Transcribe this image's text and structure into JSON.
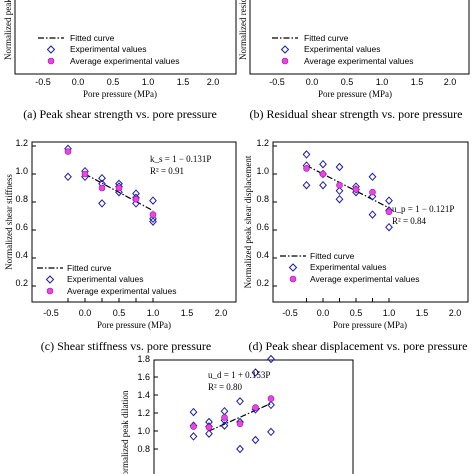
{
  "chart_data": [
    {
      "type": "scatter",
      "xlabel": "Pore pressure (MPa)",
      "ylabel": "Normalized peak shear strength",
      "xticks": [
        "-0.5",
        "0.0",
        "0.5",
        "1.0",
        "1.5",
        "2.0"
      ],
      "xlim": [
        -0.75,
        2.2
      ],
      "caption": "(a) Peak shear strength vs. pore pressure",
      "legend": [
        "Fitted curve",
        "Experimental values",
        "Average experimental values"
      ],
      "legend_position": "bottom-right"
    },
    {
      "type": "scatter",
      "xlabel": "Pore pressure (MPa)",
      "ylabel": "Normalized residual shear strength",
      "xticks": [
        "-0.5",
        "0.0",
        "0.5",
        "1.0",
        "1.5",
        "2.0"
      ],
      "xlim": [
        -0.75,
        2.2
      ],
      "caption": "(b) Residual shear strength vs. pore pressure",
      "legend": [
        "Fitted curve",
        "Experimental values",
        "Average experimental values"
      ],
      "legend_position": "bottom-right"
    },
    {
      "type": "scatter",
      "xlabel": "Pore pressure (MPa)",
      "ylabel": "Normalized shear stiffness",
      "xticks": [
        "-0.5",
        "0.0",
        "0.5",
        "1.0",
        "1.5",
        "2.0"
      ],
      "yticks": [
        "0.2",
        "0.4",
        "0.6",
        "0.8",
        "1.0",
        "1.2"
      ],
      "xlim": [
        -0.75,
        2.2
      ],
      "ylim": [
        0.1,
        1.25
      ],
      "caption": "(c) Shear stiffness vs. pore pressure",
      "equation": "k_s = 1 − 0.131P",
      "r2": "R² = 0.91",
      "fit": {
        "intercept": 1.0,
        "slope": -0.131,
        "x_range": [
          0,
          2
        ]
      },
      "legend": [
        "Fitted curve",
        "Experimental values",
        "Average experimental values"
      ],
      "legend_position": "bottom-left",
      "experimental": [
        [
          -0.5,
          1.18
        ],
        [
          -0.5,
          0.98
        ],
        [
          0,
          1.02
        ],
        [
          0,
          0.98
        ],
        [
          0.5,
          0.97
        ],
        [
          0.5,
          0.93
        ],
        [
          0.5,
          0.79
        ],
        [
          1,
          0.93
        ],
        [
          1,
          0.91
        ],
        [
          1,
          0.87
        ],
        [
          1.5,
          0.86
        ],
        [
          1.5,
          0.83
        ],
        [
          1.5,
          0.79
        ],
        [
          2,
          0.81
        ],
        [
          2,
          0.68
        ],
        [
          2,
          0.66
        ]
      ],
      "average": [
        [
          -0.5,
          1.16
        ],
        [
          0,
          1.0
        ],
        [
          0.5,
          0.9
        ],
        [
          1,
          0.9
        ],
        [
          1.5,
          0.82
        ],
        [
          2,
          0.71
        ]
      ]
    },
    {
      "type": "scatter",
      "xlabel": "Pore pressure (MPa)",
      "ylabel": "Normalized peak shear displacement",
      "xticks": [
        "-0.5",
        "0.0",
        "0.5",
        "1.0",
        "1.5",
        "2.0"
      ],
      "yticks": [
        "0.2",
        "0.4",
        "0.6",
        "0.8",
        "1.0",
        "1.2"
      ],
      "xlim": [
        -0.75,
        2.2
      ],
      "ylim": [
        0.1,
        1.25
      ],
      "caption": "(d) Peak shear displacement vs. pore pressure",
      "equation": "u_p = 1 − 0.121P",
      "r2": "R² = 0.84",
      "fit": {
        "intercept": 1.0,
        "slope": -0.121,
        "x_range": [
          -0.5,
          2
        ]
      },
      "legend": [
        "Fitted curve",
        "Experimental values",
        "Average experimental values"
      ],
      "legend_position": "bottom-left",
      "experimental": [
        [
          -0.5,
          1.14
        ],
        [
          -0.5,
          1.06
        ],
        [
          -0.5,
          0.92
        ],
        [
          0,
          1.07
        ],
        [
          0,
          1.0
        ],
        [
          0,
          0.92
        ],
        [
          0.5,
          1.05
        ],
        [
          0.5,
          0.88
        ],
        [
          0.5,
          0.82
        ],
        [
          1,
          0.91
        ],
        [
          1,
          0.89
        ],
        [
          1,
          0.87
        ],
        [
          1.5,
          0.98
        ],
        [
          1.5,
          0.84
        ],
        [
          1.5,
          0.71
        ],
        [
          2,
          0.81
        ],
        [
          2,
          0.74
        ],
        [
          2,
          0.62
        ]
      ],
      "average": [
        [
          -0.5,
          1.04
        ],
        [
          0,
          1.0
        ],
        [
          0.5,
          0.92
        ],
        [
          1,
          0.89
        ],
        [
          1.5,
          0.87
        ],
        [
          2,
          0.73
        ]
      ]
    },
    {
      "type": "scatter",
      "ylabel": "Normalized peak dilation",
      "xlim": [
        -0.75,
        2.2
      ],
      "yticks": [
        "0.8",
        "1.0",
        "1.2",
        "1.4",
        "1.6",
        "1.8"
      ],
      "ylim": [
        0.7,
        1.87
      ],
      "equation": "u_d = 1 + 0.153P",
      "r2": "R² = 0.80",
      "fit": {
        "intercept": 1.0,
        "slope": 0.153,
        "x_range": [
          0,
          2
        ]
      },
      "experimental": [
        [
          -0.5,
          1.21
        ],
        [
          -0.5,
          1.06
        ],
        [
          -0.5,
          0.94
        ],
        [
          0,
          1.1
        ],
        [
          0,
          1.05
        ],
        [
          0,
          0.97
        ],
        [
          0.5,
          1.22
        ],
        [
          0.5,
          1.12
        ],
        [
          0.5,
          1.06
        ],
        [
          1,
          1.33
        ],
        [
          1,
          1.1
        ],
        [
          1,
          0.8
        ],
        [
          1.5,
          1.65
        ],
        [
          1.5,
          1.24
        ],
        [
          1.5,
          0.9
        ],
        [
          2,
          1.8
        ],
        [
          2,
          1.29
        ],
        [
          2,
          0.99
        ]
      ],
      "average": [
        [
          -0.5,
          1.05
        ],
        [
          0,
          1.04
        ],
        [
          0.5,
          1.15
        ],
        [
          1,
          1.08
        ],
        [
          1.5,
          1.26
        ],
        [
          2,
          1.36
        ]
      ]
    }
  ]
}
